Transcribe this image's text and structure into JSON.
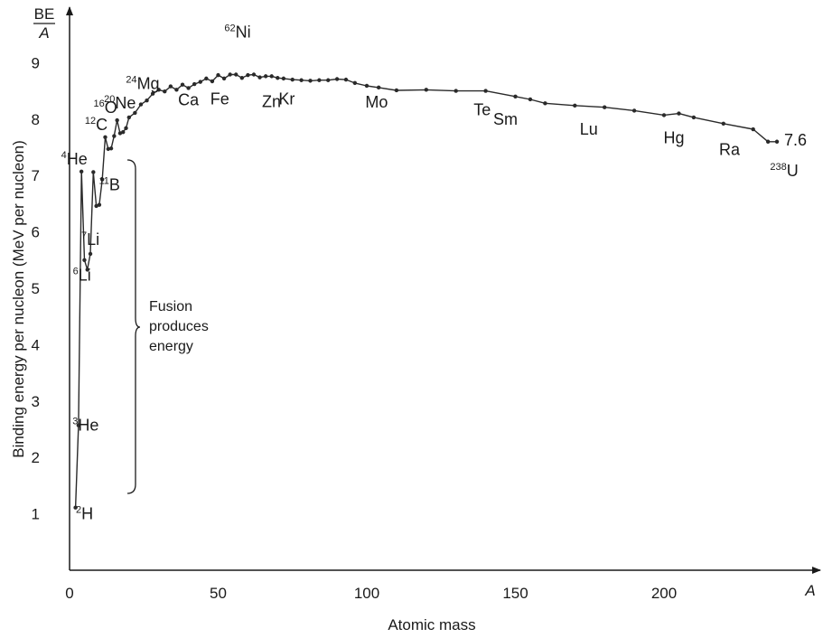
{
  "chart_data": {
    "type": "line",
    "title": "",
    "xlabel": "Atomic mass",
    "x_axis_symbol": "A",
    "ylabel": "Binding energy per nucleon (MeV per nucleon)",
    "y_axis_symbol_top": "BE",
    "y_axis_symbol_bottom": "A",
    "xlim": [
      0,
      255
    ],
    "ylim": [
      0,
      9.8
    ],
    "x_ticks": [
      "0",
      "50",
      "100",
      "150",
      "200"
    ],
    "y_ticks": [
      "1",
      "2",
      "3",
      "4",
      "5",
      "6",
      "7",
      "8",
      "9"
    ],
    "grid": false,
    "legend": "none",
    "line_color": "#2a2a2a",
    "series": [
      {
        "x": [
          2,
          3,
          4,
          5,
          6,
          7,
          8,
          9,
          10,
          11,
          12,
          13,
          14,
          15,
          16,
          17,
          18,
          19,
          20,
          22,
          24,
          26,
          28,
          30,
          32,
          34,
          36,
          38,
          40,
          42,
          44,
          46,
          48,
          50,
          52,
          54,
          56,
          58,
          60,
          62,
          64,
          66,
          68,
          70,
          72,
          75,
          78,
          81,
          84,
          87,
          90,
          93,
          96,
          100,
          104,
          110,
          120,
          130,
          140,
          150,
          155,
          160,
          170,
          180,
          190,
          200,
          205,
          210,
          220,
          230,
          235,
          238
        ],
        "y": [
          1.11,
          2.57,
          7.07,
          5.5,
          5.33,
          5.61,
          7.06,
          6.46,
          6.48,
          6.93,
          7.68,
          7.47,
          7.48,
          7.7,
          7.98,
          7.75,
          7.77,
          7.84,
          8.03,
          8.11,
          8.26,
          8.33,
          8.45,
          8.52,
          8.49,
          8.58,
          8.52,
          8.61,
          8.55,
          8.62,
          8.66,
          8.72,
          8.67,
          8.78,
          8.72,
          8.79,
          8.79,
          8.73,
          8.78,
          8.79,
          8.74,
          8.76,
          8.76,
          8.73,
          8.72,
          8.7,
          8.69,
          8.68,
          8.69,
          8.69,
          8.71,
          8.7,
          8.64,
          8.59,
          8.56,
          8.51,
          8.52,
          8.5,
          8.5,
          8.4,
          8.35,
          8.28,
          8.24,
          8.21,
          8.15,
          8.07,
          8.1,
          8.03,
          7.92,
          7.82,
          7.6,
          7.6
        ]
      }
    ],
    "element_labels": [
      {
        "mass": "2",
        "symbol": "H",
        "x": 2,
        "y": 1.11
      },
      {
        "mass": "3",
        "symbol": "He",
        "x": 3,
        "y": 2.57
      },
      {
        "mass": "4",
        "symbol": "He",
        "x": 4,
        "y": 7.07
      },
      {
        "mass": "6",
        "symbol": "Li",
        "x": 6,
        "y": 5.33
      },
      {
        "mass": "7",
        "symbol": "Li",
        "x": 7,
        "y": 5.61
      },
      {
        "mass": "11",
        "symbol": "B",
        "x": 11,
        "y": 6.93
      },
      {
        "mass": "12",
        "symbol": "C",
        "x": 12,
        "y": 7.68
      },
      {
        "mass": "16",
        "symbol": "O",
        "x": 16,
        "y": 7.98
      },
      {
        "mass": "20",
        "symbol": "Ne",
        "x": 20,
        "y": 8.03
      },
      {
        "mass": "24",
        "symbol": "Mg",
        "x": 24,
        "y": 8.26
      },
      {
        "mass": "",
        "symbol": "Ca",
        "x": 40,
        "y": 8.55
      },
      {
        "mass": "",
        "symbol": "Fe",
        "x": 56,
        "y": 8.79
      },
      {
        "mass": "62",
        "symbol": "Ni",
        "x": 62,
        "y": 8.79
      },
      {
        "mass": "",
        "symbol": "Zn",
        "x": 64,
        "y": 8.74
      },
      {
        "mass": "",
        "symbol": "Kr",
        "x": 84,
        "y": 8.69
      },
      {
        "mass": "",
        "symbol": "Mo",
        "x": 96,
        "y": 8.64
      },
      {
        "mass": "",
        "symbol": "Te",
        "x": 130,
        "y": 8.5
      },
      {
        "mass": "",
        "symbol": "Sm",
        "x": 150,
        "y": 8.4
      },
      {
        "mass": "",
        "symbol": "Lu",
        "x": 175,
        "y": 8.22
      },
      {
        "mass": "",
        "symbol": "Hg",
        "x": 200,
        "y": 8.07
      },
      {
        "mass": "",
        "symbol": "Ra",
        "x": 226,
        "y": 7.86
      },
      {
        "mass": "238",
        "symbol": "U",
        "x": 238,
        "y": 7.6
      }
    ],
    "annotations": [
      {
        "text": "7.6"
      },
      {
        "lines": [
          "Fusion",
          "produces",
          "energy"
        ]
      }
    ]
  }
}
